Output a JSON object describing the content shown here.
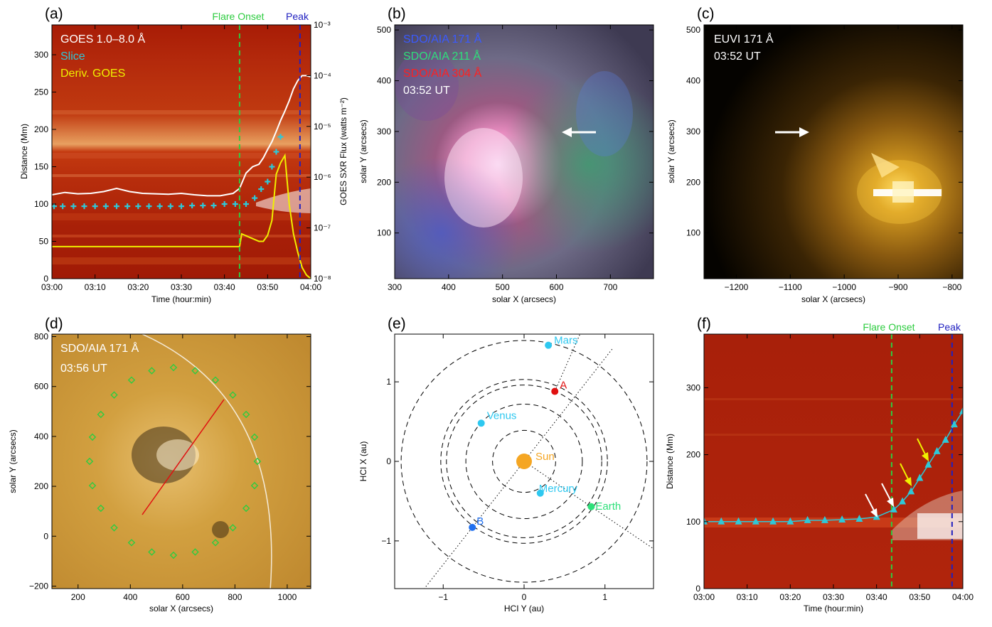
{
  "figure": {
    "panels": [
      {
        "id": "a",
        "label": "(a)"
      },
      {
        "id": "b",
        "label": "(b)"
      },
      {
        "id": "c",
        "label": "(c)"
      },
      {
        "id": "d",
        "label": "(d)"
      },
      {
        "id": "e",
        "label": "(e)"
      },
      {
        "id": "f",
        "label": "(f)"
      }
    ],
    "markers": {
      "onset": "Flare Onset",
      "peak": "Peak"
    }
  },
  "panel_a": {
    "legend": [
      "GOES 1.0–8.0 Å",
      "Slice",
      "Deriv. GOES"
    ],
    "ylabel": "Distance (Mm)",
    "ylabel_right": "GOES SXR Flux (watts m⁻²)",
    "xlabel": "Time (hour:min)"
  },
  "panel_b": {
    "legend": [
      "SDO/AIA 171 Å",
      "SDO/AIA 211 Å",
      "SDO/AIA 304 Å",
      "03:52 UT"
    ],
    "xlabel": "solar X (arcsecs)",
    "ylabel": "solar Y (arcsecs)"
  },
  "panel_c": {
    "legend": [
      "EUVI 171 Å",
      "03:52 UT"
    ],
    "xlabel": "solar X (arcsecs)",
    "ylabel": "solar Y (arcsecs)"
  },
  "panel_d": {
    "legend": [
      "SDO/AIA 171 Å",
      "03:56 UT"
    ],
    "xlabel": "solar X (arcsecs)",
    "ylabel": "solar Y (arcsecs)"
  },
  "panel_e": {
    "xlabel": "HCI Y (au)",
    "ylabel": "HCI X (au)",
    "bodies": [
      "Mars",
      "A",
      "Venus",
      "Sun",
      "Mercury",
      "Earth",
      "B"
    ]
  },
  "panel_f": {
    "ylabel": "Distance (Mm)",
    "xlabel": "Time (hour:min)"
  },
  "colors": {
    "onset": "#2ecc40",
    "peak": "#2020c0",
    "cyan": "#2ec8d8",
    "yellow": "#f0f000",
    "map_bg": "#b02008",
    "aia_gold": "#c89a3a"
  },
  "chart_data": [
    {
      "type": "line",
      "panel": "a",
      "xlim": [
        "03:00",
        "04:00"
      ],
      "ylim": [
        0,
        340
      ],
      "ylim_right": [
        1e-08,
        0.001
      ],
      "yscale_right": "log",
      "x_ticks": [
        "03:00",
        "03:10",
        "03:20",
        "03:30",
        "03:40",
        "03:50",
        "04:00"
      ],
      "y_ticks": [
        0,
        50,
        100,
        150,
        200,
        250,
        300
      ],
      "y_ticks_right": [
        "10⁻⁸",
        "10⁻⁷",
        "10⁻⁶",
        "10⁻⁵",
        "10⁻⁴",
        "10⁻³"
      ],
      "onset": 43.5,
      "peak": 57.5,
      "series": [
        {
          "name": "GOES 1.0–8.0 Å",
          "x": [
            0,
            3,
            6,
            9,
            12,
            15,
            18,
            21,
            24,
            27,
            30,
            33,
            36,
            39,
            42,
            43.5,
            45,
            46.5,
            48,
            49,
            50,
            51,
            52,
            53,
            54,
            55,
            56,
            57,
            58,
            59,
            60
          ],
          "y": [
            4.5e-07,
            5e-07,
            4.7e-07,
            4.8e-07,
            5.2e-07,
            6e-07,
            5.2e-07,
            4.8e-07,
            4.7e-07,
            4.6e-07,
            4.8e-07,
            4.5e-07,
            4.3e-07,
            4.3e-07,
            4.8e-07,
            6e-07,
            1.2e-06,
            1.6e-06,
            1.8e-06,
            2.4e-06,
            3.5e-06,
            5e-06,
            8e-06,
            1.3e-05,
            2e-05,
            3.2e-05,
            5.5e-05,
            8e-05,
            0.0001,
            0.0001,
            9.5e-05
          ]
        },
        {
          "name": "Slice",
          "x": [
            0.5,
            2.5,
            5,
            7.5,
            10,
            12.5,
            15,
            17.5,
            20,
            22.5,
            25,
            27.5,
            30,
            32.5,
            35,
            37.5,
            40,
            42.5,
            45,
            47,
            48.5,
            50,
            51,
            52,
            53
          ],
          "y": [
            97,
            97,
            97,
            97,
            97,
            97,
            97,
            97,
            97,
            97,
            97,
            97,
            97,
            98,
            98,
            98,
            100,
            100,
            100,
            108,
            120,
            130,
            150,
            170,
            190
          ]
        },
        {
          "name": "Deriv. GOES",
          "x": [
            0,
            10,
            20,
            30,
            43.5,
            44,
            46,
            48,
            49,
            50,
            51,
            52,
            53,
            54,
            55,
            56,
            57,
            58,
            59,
            60
          ],
          "y": [
            43,
            43,
            43,
            43,
            43,
            60,
            55,
            50,
            50,
            58,
            78,
            140,
            155,
            165,
            100,
            60,
            35,
            15,
            5,
            0
          ]
        }
      ]
    },
    {
      "type": "line",
      "panel": "f",
      "xlim": [
        "03:00",
        "04:00"
      ],
      "ylim": [
        0,
        380
      ],
      "x_ticks": [
        "03:00",
        "03:10",
        "03:20",
        "03:30",
        "03:40",
        "03:50",
        "04:00"
      ],
      "y_ticks": [
        0,
        100,
        200,
        300
      ],
      "onset": 43.5,
      "peak": 57.5,
      "series": [
        {
          "x": [
            0,
            4,
            8,
            12,
            16,
            20,
            24,
            28,
            32,
            36,
            40,
            44,
            46,
            48,
            50,
            52,
            54,
            56,
            58,
            60
          ],
          "y": [
            100,
            100,
            100,
            100,
            100,
            100,
            102,
            102,
            103,
            104,
            107,
            118,
            130,
            145,
            165,
            185,
            205,
            222,
            245,
            265
          ]
        }
      ]
    },
    {
      "type": "scatter",
      "panel": "e",
      "xlim": [
        -1.6,
        1.6
      ],
      "ylim": [
        -1.6,
        1.6
      ],
      "x_ticks": [
        -1,
        0,
        1
      ],
      "y_ticks": [
        -1,
        0,
        1
      ],
      "orbits_au": [
        0.39,
        0.72,
        0.96,
        1.03,
        1.52
      ],
      "points": [
        {
          "name": "Sun",
          "x": 0.0,
          "y": 0.0
        },
        {
          "name": "Mercury",
          "x": 0.2,
          "y": -0.4
        },
        {
          "name": "Venus",
          "x": -0.53,
          "y": 0.48
        },
        {
          "name": "Earth",
          "x": 0.83,
          "y": -0.57
        },
        {
          "name": "Mars",
          "x": 0.3,
          "y": 1.46
        },
        {
          "name": "A",
          "x": 0.38,
          "y": 0.88
        },
        {
          "name": "B",
          "x": -0.64,
          "y": -0.83
        }
      ]
    }
  ]
}
